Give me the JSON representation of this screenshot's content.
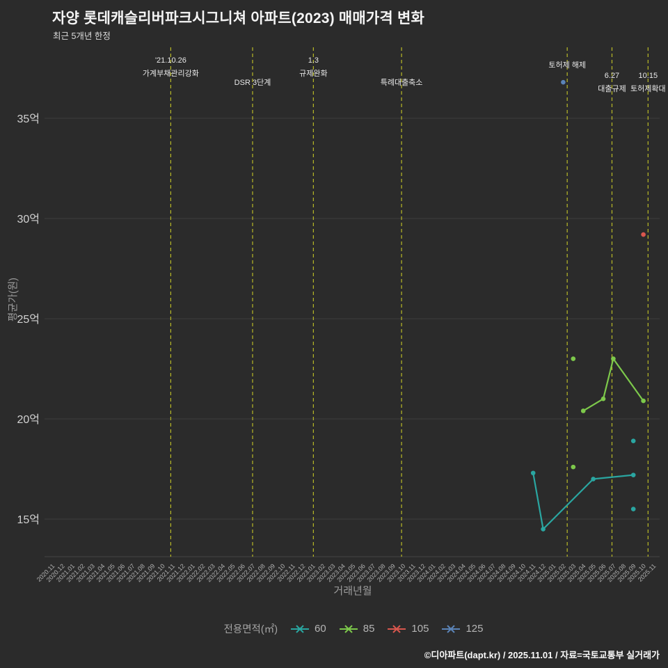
{
  "header": {
    "title": "자양 롯데캐슬리버파크시그니쳐 아파트(2023) 매매가격 변화",
    "subtitle": "최근 5개년 한정"
  },
  "footer": {
    "credit": "©디아파트(dapt.kr) / 2025.11.01 / 자료=국토교통부 실거래가"
  },
  "legend": {
    "title": "전용면적(㎡)"
  },
  "chart_data": {
    "type": "line",
    "title": "자양 롯데캐슬리버파크시그니쳐 아파트(2023) 매매가격 변화",
    "subtitle": "최근 5개년 한정",
    "xlabel": "거래년월",
    "ylabel": "평균가(원)",
    "value_unit": "억",
    "grid": true,
    "legend_position": "bottom",
    "ylim": [
      13,
      38.5
    ],
    "y_ticks": [
      {
        "value": 15,
        "label": "15억"
      },
      {
        "value": 20,
        "label": "20억"
      },
      {
        "value": 25,
        "label": "25억"
      },
      {
        "value": 30,
        "label": "30억"
      },
      {
        "value": 35,
        "label": "35억"
      }
    ],
    "x_tick_labels": [
      "2020.11",
      "2020.12",
      "2021.01",
      "2021.02",
      "2021.03",
      "2021.04",
      "2021.05",
      "2021.06",
      "2021.07",
      "2021.08",
      "2021.09",
      "2021.10",
      "2021.11",
      "2021.12",
      "2022.01",
      "2022.02",
      "2022.03",
      "2022.04",
      "2022.05",
      "2022.06",
      "2022.07",
      "2022.08",
      "2022.09",
      "2022.10",
      "2022.11",
      "2022.12",
      "2023.01",
      "2023.02",
      "2023.03",
      "2023.04",
      "2023.05",
      "2023.06",
      "2023.07",
      "2023.08",
      "2023.09",
      "2023.10",
      "2023.11",
      "2023.12",
      "2024.01",
      "2024.02",
      "2024.03",
      "2024.04",
      "2024.05",
      "2024.06",
      "2024.07",
      "2024.08",
      "2024.09",
      "2024.10",
      "2024.11",
      "2024.12",
      "2025.01",
      "2025.02",
      "2025.03",
      "2025.04",
      "2025.05",
      "2025.06",
      "2025.07",
      "2025.08",
      "2025.09",
      "2025.10",
      "2025.11"
    ],
    "event_line_color": "#b9ba27",
    "annotations": [
      {
        "month": "2021.10",
        "day": 26,
        "lines": [
          "'21.10.26",
          "가계부채관리강화"
        ],
        "label_y": 90
      },
      {
        "month": "2022.07",
        "day": 1,
        "lines": [
          "DSR 3단계"
        ],
        "label_y": 122
      },
      {
        "month": "2023.01",
        "day": 3,
        "lines": [
          "1.3",
          "규제완화"
        ],
        "label_y": 90
      },
      {
        "month": "2023.09",
        "day": 27,
        "lines": [
          "특례대출축소"
        ],
        "label_y": 122
      },
      {
        "month": "2025.02",
        "day": 13,
        "lines": [
          "토허제 해제"
        ],
        "label_y": 97
      },
      {
        "month": "2025.06",
        "day": 27,
        "lines": [
          "6.27",
          "대출규제"
        ],
        "label_y": 112
      },
      {
        "month": "2025.10",
        "day": 15,
        "lines": [
          "10.15",
          "토허제확대"
        ],
        "label_y": 112
      }
    ],
    "series": [
      {
        "name": "60",
        "color": "#2aa6a1",
        "points": [
          [
            "2024.11",
            17.3
          ],
          [
            "2024.12",
            14.5
          ],
          [
            "2025.05",
            17.0
          ],
          [
            "2025.09",
            17.2
          ]
        ],
        "isolated": [
          [
            "2025.09",
            18.9
          ],
          [
            "2025.09",
            15.5
          ]
        ]
      },
      {
        "name": "85",
        "color": "#7dc94b",
        "points": [
          [
            "2025.04",
            20.4
          ],
          [
            "2025.06",
            21.0
          ],
          [
            "2025.07",
            23.0
          ],
          [
            "2025.10",
            20.9
          ]
        ],
        "isolated": [
          [
            "2025.03",
            23.0
          ],
          [
            "2025.03",
            17.6
          ]
        ]
      },
      {
        "name": "105",
        "color": "#d9574e",
        "points": [],
        "isolated": [
          [
            "2025.10",
            29.2
          ]
        ]
      },
      {
        "name": "125",
        "color": "#5b84b8",
        "points": [],
        "isolated": [
          [
            "2025.02",
            36.8
          ]
        ]
      }
    ]
  }
}
